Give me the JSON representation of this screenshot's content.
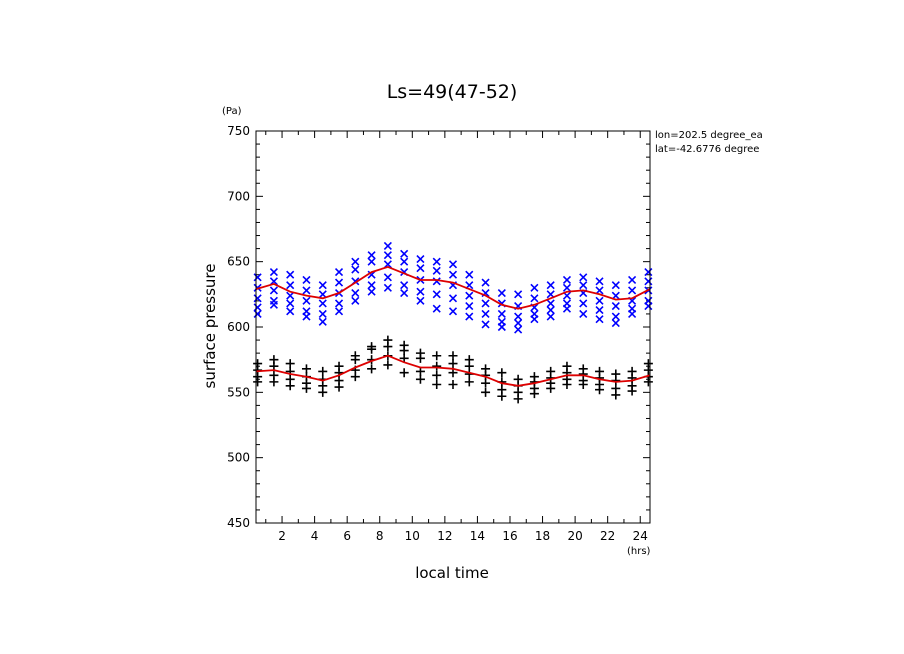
{
  "chart_data": {
    "type": "scatter",
    "title": "Ls=49(47-52)",
    "xlabel": "local time",
    "ylabel": "surface pressure",
    "xunit": "(hrs)",
    "yunit": "(Pa)",
    "xlim": [
      0.4,
      24.6
    ],
    "ylim": [
      450,
      750
    ],
    "xticks": [
      2,
      4,
      6,
      8,
      10,
      12,
      14,
      16,
      18,
      20,
      22,
      24
    ],
    "yticks": [
      450,
      500,
      550,
      600,
      650,
      700,
      750
    ],
    "annotations": [
      "lon=202.5 degree_ea",
      "lat=-42.6776 degree"
    ],
    "series": [
      {
        "marker": "x",
        "color": "#0000ff",
        "x": [
          0.5,
          1.5,
          2.5,
          3.5,
          4.5,
          5.5,
          6.5,
          7.5,
          8.5,
          9.5,
          10.5,
          11.5,
          12.5,
          13.5,
          14.5,
          15.5,
          16.5,
          17.5,
          18.5,
          19.5,
          20.5,
          21.5,
          22.5,
          23.5,
          24.5
        ],
        "y": [
          [
            638,
            630,
            622,
            615,
            610
          ],
          [
            642,
            635,
            628,
            620,
            617
          ],
          [
            640,
            632,
            624,
            618,
            612
          ],
          [
            636,
            628,
            620,
            612,
            608
          ],
          [
            632,
            625,
            618,
            610,
            604
          ],
          [
            642,
            634,
            626,
            618,
            612
          ],
          [
            650,
            644,
            635,
            626,
            620
          ],
          [
            655,
            650,
            640,
            632,
            627
          ],
          [
            662,
            655,
            648,
            638,
            630
          ],
          [
            656,
            650,
            642,
            632,
            626
          ],
          [
            652,
            645,
            636,
            627,
            620
          ],
          [
            650,
            643,
            635,
            625,
            614
          ],
          [
            648,
            640,
            632,
            622,
            612
          ],
          [
            640,
            632,
            624,
            616,
            608
          ],
          [
            634,
            626,
            618,
            610,
            602
          ],
          [
            626,
            618,
            610,
            604,
            600
          ],
          [
            625,
            616,
            608,
            603,
            598
          ],
          [
            630,
            622,
            615,
            610,
            606
          ],
          [
            632,
            625,
            618,
            613,
            608
          ],
          [
            636,
            630,
            624,
            618,
            614
          ],
          [
            638,
            632,
            626,
            618,
            610
          ],
          [
            635,
            628,
            620,
            613,
            606
          ],
          [
            632,
            624,
            616,
            608,
            603
          ],
          [
            636,
            628,
            620,
            614,
            610
          ],
          [
            642,
            635,
            628,
            620,
            616
          ]
        ]
      },
      {
        "marker": "+",
        "color": "#000000",
        "x": [
          0.5,
          1.5,
          2.5,
          3.5,
          4.5,
          5.5,
          6.5,
          7.5,
          8.5,
          9.5,
          10.5,
          11.5,
          12.5,
          13.5,
          14.5,
          15.5,
          16.5,
          17.5,
          18.5,
          19.5,
          20.5,
          21.5,
          22.5,
          23.5,
          24.5
        ],
        "y": [
          [
            572,
            567,
            562,
            558
          ],
          [
            575,
            570,
            563,
            558
          ],
          [
            572,
            566,
            560,
            555
          ],
          [
            568,
            562,
            557,
            553
          ],
          [
            566,
            560,
            555,
            550
          ],
          [
            570,
            565,
            559,
            554
          ],
          [
            578,
            575,
            567,
            562
          ],
          [
            585,
            583,
            575,
            568
          ],
          [
            590,
            585,
            578,
            571
          ],
          [
            586,
            582,
            576,
            565
          ],
          [
            580,
            576,
            566,
            560
          ],
          [
            578,
            570,
            563,
            556
          ],
          [
            578,
            572,
            565,
            556
          ],
          [
            575,
            570,
            564,
            558
          ],
          [
            568,
            563,
            557,
            550
          ],
          [
            565,
            558,
            552,
            547
          ],
          [
            560,
            555,
            550,
            545
          ],
          [
            562,
            558,
            553,
            549
          ],
          [
            566,
            561,
            557,
            553
          ],
          [
            570,
            565,
            560,
            556
          ],
          [
            568,
            564,
            559,
            556
          ],
          [
            566,
            561,
            556,
            552
          ],
          [
            564,
            559,
            553,
            548
          ],
          [
            566,
            561,
            555,
            551
          ],
          [
            572,
            567,
            562,
            558
          ]
        ]
      }
    ],
    "lines": [
      {
        "color": "#dd0000",
        "x": [
          0.4,
          1.5,
          2.5,
          3.5,
          4.5,
          5.5,
          6.5,
          7.5,
          8.5,
          9.5,
          10.5,
          11.5,
          12.5,
          13.5,
          14.5,
          15.5,
          16.5,
          17.5,
          18.5,
          19.5,
          20.5,
          21.5,
          22.5,
          23.5,
          24.6
        ],
        "y": [
          629,
          633,
          627,
          624,
          622,
          626,
          634,
          642,
          646,
          641,
          636,
          636,
          634,
          629,
          624,
          617,
          614,
          617,
          622,
          627,
          628,
          625,
          621,
          622,
          629
        ]
      },
      {
        "color": "#dd0000",
        "x": [
          0.4,
          1.5,
          2.5,
          3.5,
          4.5,
          5.5,
          6.5,
          7.5,
          8.5,
          9.5,
          10.5,
          11.5,
          12.5,
          13.5,
          14.5,
          15.5,
          16.5,
          17.5,
          18.5,
          19.5,
          20.5,
          21.5,
          22.5,
          23.5,
          24.6
        ],
        "y": [
          566,
          567,
          564,
          562,
          559,
          563,
          569,
          574,
          578,
          573,
          569,
          569,
          568,
          565,
          562,
          557,
          555,
          557,
          560,
          563,
          563,
          560,
          558,
          559,
          563
        ]
      }
    ]
  }
}
